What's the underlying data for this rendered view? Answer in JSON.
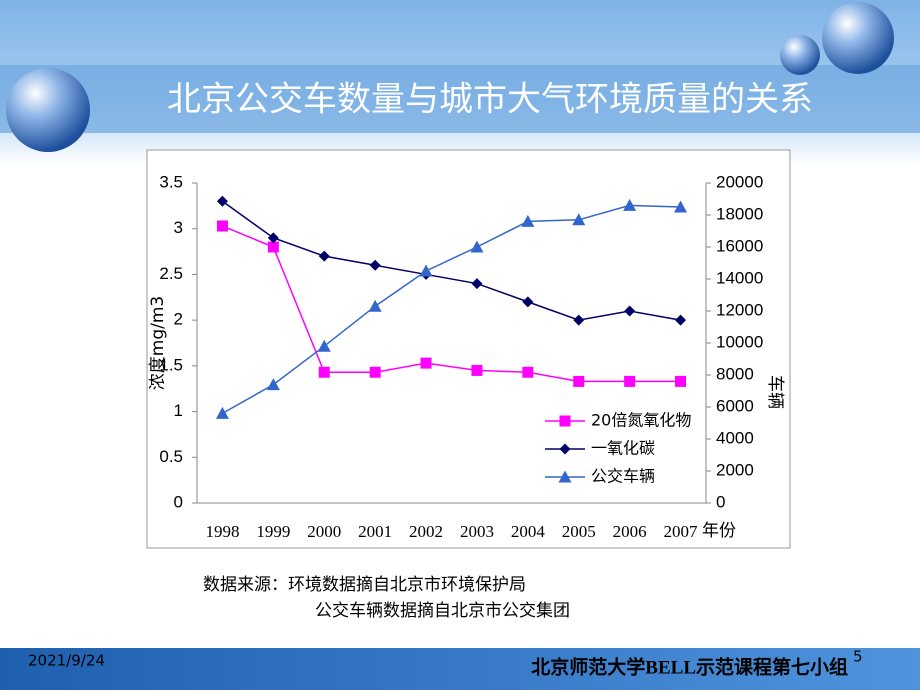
{
  "slide": {
    "title": "北京公交车数量与城市大气环境质量的关系",
    "source": [
      "数据来源：环境数据摘自北京市环境保护局",
      "公交车辆数据摘自北京市公交集团"
    ],
    "date": "2021/9/24",
    "footer": "北京师范大学BELL示范课程第七小组",
    "page": "5"
  },
  "chart_data": {
    "type": "line",
    "xlabel": "年份",
    "ylabel": "浓度mg/m3",
    "y2label": "车辆",
    "categories": [
      "1998",
      "1999",
      "2000",
      "2001",
      "2002",
      "2003",
      "2004",
      "2005",
      "2006",
      "2007"
    ],
    "ylim": [
      0,
      3.5
    ],
    "yticks": [
      0,
      0.5,
      1,
      1.5,
      2,
      2.5,
      3,
      3.5
    ],
    "y2lim": [
      0,
      20000
    ],
    "y2ticks": [
      0,
      2000,
      4000,
      6000,
      8000,
      10000,
      12000,
      14000,
      16000,
      18000,
      20000
    ],
    "legend": "lower right",
    "series": [
      {
        "name": "20倍氮氧化物",
        "color": "#ff00ff",
        "marker": "square",
        "values": [
          3.03,
          2.8,
          1.43,
          1.43,
          1.53,
          1.45,
          1.43,
          1.33,
          1.33,
          1.33
        ]
      },
      {
        "name": "一氧化碳",
        "color": "#000066",
        "marker": "diamond",
        "values": [
          3.3,
          2.9,
          2.7,
          2.6,
          2.5,
          2.4,
          2.2,
          2.0,
          2.1,
          2.0
        ]
      },
      {
        "name": "公交车辆",
        "color": "#3366cc",
        "marker": "triangle",
        "axis": "y2",
        "values": [
          5600,
          7400,
          9800,
          12300,
          14500,
          16000,
          17600,
          17700,
          18600,
          18500
        ]
      }
    ]
  }
}
